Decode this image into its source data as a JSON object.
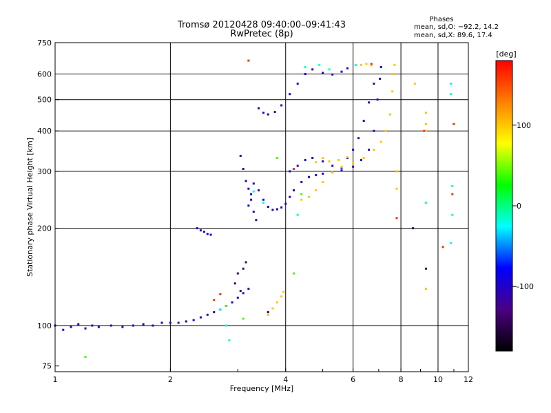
{
  "header": {
    "title_line1": "Tromsø 20120428 09:40:00–09:41:43",
    "title_line2": "RwPretec (8p)",
    "phases_title": "Phases",
    "phases_line1": "mean, sd,O: −92.2, 14.2",
    "phases_line2": "mean, sd,X:  89.6, 17.4"
  },
  "chart_data": {
    "type": "scatter",
    "xlabel": "Frequency [MHz]",
    "ylabel": "Stationary phase Virtual Height [km]",
    "x_scale": "log",
    "y_scale": "log",
    "xlim": [
      1,
      12
    ],
    "ylim": [
      72,
      750
    ],
    "x_ticks": [
      1,
      2,
      4,
      6,
      8,
      10,
      12
    ],
    "y_ticks": [
      75,
      100,
      200,
      300,
      400,
      500,
      600,
      750
    ],
    "x_gridlines": [
      2,
      4,
      6,
      8,
      10
    ],
    "y_gridlines": [
      100,
      200,
      300,
      400,
      500,
      600
    ],
    "grid": true,
    "colorbar": {
      "label": "[deg]",
      "ticks": [
        100,
        0,
        -100
      ],
      "range": [
        -180,
        180
      ],
      "colors": [
        "#000000",
        "#4b0082",
        "#0000ff",
        "#00ffff",
        "#00ff00",
        "#ffff00",
        "#ff8000",
        "#ff0000"
      ]
    },
    "series": [
      {
        "phase": -100,
        "points": [
          [
            1.0,
            100
          ],
          [
            1.05,
            97
          ],
          [
            1.1,
            99
          ],
          [
            1.15,
            101
          ],
          [
            1.2,
            98
          ],
          [
            1.25,
            100
          ],
          [
            1.3,
            99
          ],
          [
            1.4,
            100
          ],
          [
            1.5,
            99
          ],
          [
            1.6,
            100
          ],
          [
            1.7,
            101
          ],
          [
            1.8,
            100
          ],
          [
            1.9,
            102
          ],
          [
            2.0,
            102
          ],
          [
            2.1,
            102
          ],
          [
            2.2,
            103
          ],
          [
            2.3,
            104
          ],
          [
            2.4,
            106
          ],
          [
            2.5,
            108
          ],
          [
            2.6,
            110
          ],
          [
            2.7,
            112
          ],
          [
            2.8,
            115
          ],
          [
            2.9,
            118
          ],
          [
            3.0,
            122
          ],
          [
            3.1,
            126
          ],
          [
            3.2,
            130
          ]
        ]
      },
      {
        "phase": -100,
        "points": [
          [
            2.35,
            200
          ],
          [
            2.4,
            197
          ],
          [
            2.45,
            195
          ],
          [
            2.5,
            192
          ],
          [
            2.55,
            191
          ]
        ]
      },
      {
        "phase": -100,
        "points": [
          [
            3.2,
            235
          ],
          [
            3.25,
            255
          ],
          [
            3.3,
            275
          ],
          [
            3.4,
            262
          ],
          [
            3.5,
            245
          ],
          [
            3.6,
            233
          ],
          [
            3.7,
            228
          ],
          [
            3.8,
            229
          ],
          [
            3.9,
            232
          ],
          [
            4.0,
            238
          ],
          [
            4.1,
            250
          ],
          [
            4.2,
            262
          ],
          [
            4.4,
            278
          ],
          [
            4.6,
            288
          ],
          [
            4.8,
            292
          ],
          [
            5.0,
            295
          ],
          [
            5.3,
            298
          ],
          [
            5.6,
            302
          ],
          [
            6.0,
            310
          ],
          [
            6.3,
            325
          ],
          [
            6.6,
            350
          ],
          [
            6.8,
            400
          ],
          [
            6.95,
            500
          ],
          [
            7.05,
            580
          ],
          [
            7.1,
            630
          ]
        ]
      },
      {
        "phase": -100,
        "points": [
          [
            3.4,
            470
          ],
          [
            3.5,
            455
          ],
          [
            3.6,
            450
          ],
          [
            3.75,
            458
          ],
          [
            3.9,
            480
          ],
          [
            4.1,
            520
          ],
          [
            4.3,
            560
          ],
          [
            4.5,
            600
          ],
          [
            4.7,
            620
          ],
          [
            5.0,
            605
          ],
          [
            5.3,
            598
          ],
          [
            5.6,
            610
          ],
          [
            5.8,
            625
          ]
        ]
      },
      {
        "phase": -100,
        "points": [
          [
            4.1,
            300
          ],
          [
            4.3,
            312
          ],
          [
            4.5,
            325
          ],
          [
            4.7,
            330
          ],
          [
            5.0,
            322
          ],
          [
            5.3,
            312
          ],
          [
            5.6,
            308
          ]
        ]
      },
      {
        "phase": -100,
        "points": [
          [
            5.8,
            330
          ],
          [
            6.0,
            350
          ],
          [
            6.2,
            380
          ],
          [
            6.4,
            430
          ],
          [
            6.6,
            490
          ],
          [
            6.8,
            560
          ]
        ]
      },
      {
        "phase": -100,
        "points": [
          [
            3.05,
            335
          ],
          [
            3.1,
            305
          ],
          [
            3.15,
            280
          ],
          [
            3.2,
            265
          ],
          [
            3.25,
            245
          ],
          [
            3.3,
            225
          ],
          [
            3.35,
            212
          ]
        ]
      },
      {
        "phase": 100,
        "points": [
          [
            4.4,
            245
          ],
          [
            4.6,
            250
          ],
          [
            4.8,
            262
          ],
          [
            5.0,
            278
          ],
          [
            5.3,
            298
          ],
          [
            5.6,
            310
          ],
          [
            6.0,
            318
          ],
          [
            6.4,
            330
          ],
          [
            6.8,
            350
          ],
          [
            7.1,
            370
          ],
          [
            7.3,
            400
          ],
          [
            7.5,
            450
          ],
          [
            7.6,
            530
          ],
          [
            7.65,
            600
          ],
          [
            7.7,
            640
          ]
        ]
      },
      {
        "phase": 100,
        "points": [
          [
            3.6,
            108
          ],
          [
            3.7,
            113
          ],
          [
            3.8,
            118
          ],
          [
            3.9,
            123
          ],
          [
            3.95,
            127
          ]
        ]
      },
      {
        "phase": 100,
        "points": [
          [
            6.3,
            640
          ],
          [
            6.5,
            645
          ],
          [
            6.7,
            638
          ]
        ]
      },
      {
        "phase": 100,
        "points": [
          [
            4.8,
            320
          ],
          [
            5.0,
            330
          ],
          [
            5.2,
            322
          ],
          [
            5.5,
            325
          ],
          [
            5.8,
            332
          ]
        ]
      },
      {
        "phase": 100,
        "points": [
          [
            9.3,
            455
          ],
          [
            9.3,
            420
          ],
          [
            9.3,
            400
          ],
          [
            7.8,
            300
          ],
          [
            7.8,
            265
          ],
          [
            8.7,
            560
          ],
          [
            9.3,
            130
          ]
        ]
      },
      {
        "phase": -140,
        "points": [
          [
            3.0,
            145
          ],
          [
            3.1,
            150
          ],
          [
            3.15,
            157
          ],
          [
            2.95,
            135
          ],
          [
            3.05,
            128
          ],
          [
            3.6,
            110
          ],
          [
            9.3,
            150
          ],
          [
            8.6,
            200
          ]
        ]
      },
      {
        "phase": -20,
        "points": [
          [
            3.3,
            260
          ],
          [
            3.5,
            240
          ],
          [
            4.3,
            220
          ],
          [
            4.5,
            630
          ],
          [
            4.9,
            640
          ],
          [
            5.2,
            620
          ],
          [
            6.1,
            640
          ],
          [
            10.8,
            560
          ],
          [
            10.8,
            520
          ],
          [
            10.9,
            270
          ],
          [
            10.9,
            220
          ],
          [
            10.8,
            180
          ],
          [
            9.3,
            240
          ],
          [
            2.85,
            90
          ],
          [
            2.8,
            100
          ],
          [
            2.7,
            112
          ]
        ]
      },
      {
        "phase": 160,
        "points": [
          [
            6.7,
            645
          ],
          [
            7.8,
            215
          ],
          [
            9.2,
            400
          ],
          [
            10.9,
            255
          ],
          [
            10.3,
            175
          ],
          [
            4.2,
            305
          ],
          [
            2.7,
            125
          ],
          [
            2.6,
            120
          ],
          [
            3.2,
            660
          ],
          [
            11.0,
            420
          ]
        ]
      },
      {
        "phase": 40,
        "points": [
          [
            2.8,
            115
          ],
          [
            3.1,
            105
          ],
          [
            4.2,
            145
          ],
          [
            3.8,
            330
          ],
          [
            4.4,
            255
          ],
          [
            1.2,
            80
          ]
        ]
      }
    ]
  }
}
